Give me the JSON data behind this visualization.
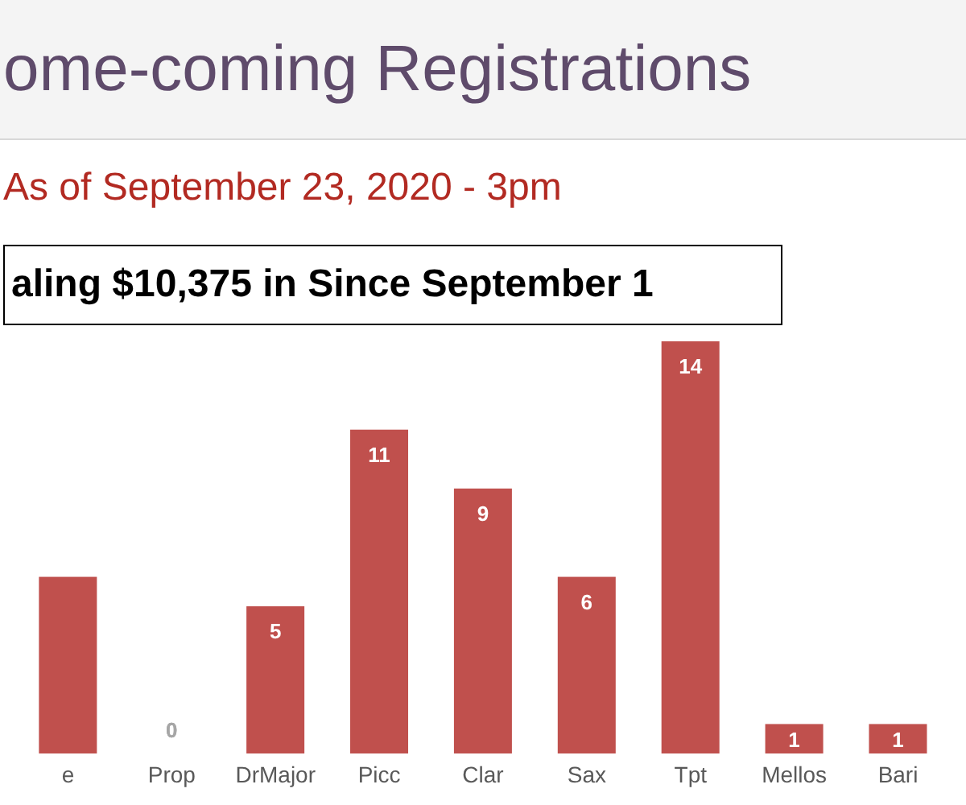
{
  "chart_data": {
    "type": "bar",
    "title": "ome-coming Registrations",
    "subtitle": "As of September 23, 2020 - 3pm",
    "annotations": [
      "aling $10,375 in Since September 1"
    ],
    "categories": [
      "e",
      "Prop",
      "DrMajor",
      "Picc",
      "Clar",
      "Sax",
      "Tpt",
      "Mellos",
      "Bari"
    ],
    "values": [
      6,
      0,
      5,
      11,
      9,
      6,
      14,
      1,
      1
    ],
    "value_labels": [
      null,
      "0",
      "5",
      "11",
      "9",
      "6",
      "14",
      "1",
      "1"
    ],
    "color": "#c0504d",
    "grid": false,
    "legend": false
  }
}
